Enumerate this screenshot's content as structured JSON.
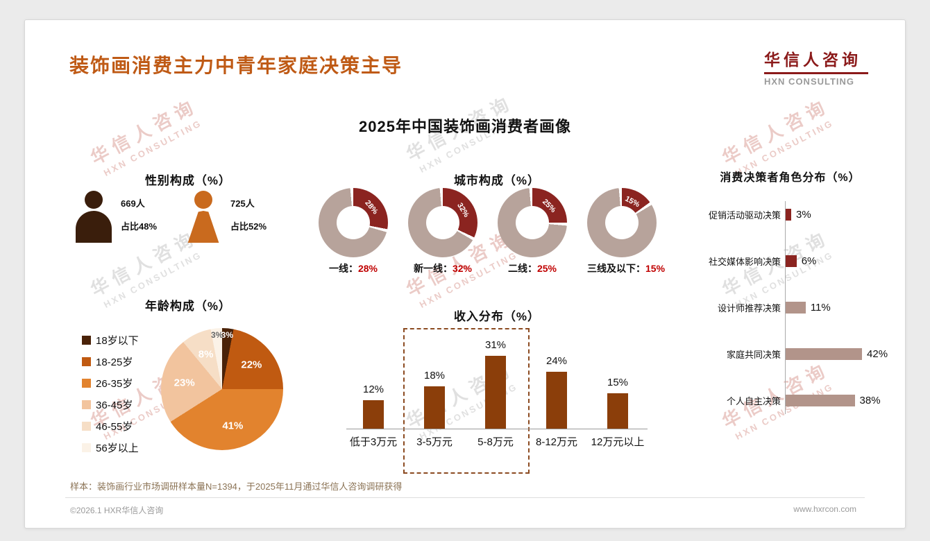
{
  "header": {
    "title": "装饰画消费主力中青年家庭决策主导",
    "logo_cn": "华信人咨询",
    "logo_en": "HXN CONSULTING"
  },
  "main_title": "2025年中国装饰画消费者画像",
  "watermark": {
    "cn": "华信人咨询",
    "en": "HXN CONSULTING"
  },
  "footer": {
    "note": "样本：装饰画行业市场调研样本量N=1394，于2025年11月通过华信人咨询调研获得",
    "copyright": "©2026.1 HXR华信人咨询",
    "website": "www.hxrcon.com"
  },
  "chart_data": [
    {
      "id": "gender",
      "type": "table",
      "title": "性别构成（%）",
      "items": [
        {
          "gender": "male",
          "count": "669人",
          "share": "占比48%",
          "color": "#3a1e0c"
        },
        {
          "gender": "female",
          "count": "725人",
          "share": "占比52%",
          "color": "#c96a1e"
        }
      ]
    },
    {
      "id": "city",
      "type": "pie",
      "variant": "donut",
      "title": "城市构成（%）",
      "categories": [
        "一线",
        "新一线",
        "二线",
        "三线及以下"
      ],
      "values": [
        28,
        32,
        25,
        15
      ],
      "slice_color": "#8b2420",
      "rest_color": "#b7a39b"
    },
    {
      "id": "decision",
      "type": "bar",
      "orientation": "horizontal",
      "title": "消费决策者角色分布（%）",
      "categories": [
        "促销活动驱动决策",
        "社交媒体影响决策",
        "设计师推荐决策",
        "家庭共同决策",
        "个人自主决策"
      ],
      "values": [
        3,
        6,
        11,
        42,
        38
      ],
      "bar_colors": [
        "#8b2420",
        "#8b2420",
        "#b2948a",
        "#b2948a",
        "#b2948a"
      ]
    },
    {
      "id": "age",
      "type": "pie",
      "title": "年龄构成（%）",
      "categories": [
        "18岁以下",
        "18-25岁",
        "26-35岁",
        "36-45岁",
        "46-55岁",
        "56岁以上"
      ],
      "values": [
        3,
        22,
        41,
        23,
        8,
        3
      ],
      "colors": [
        "#4a2208",
        "#c05a11",
        "#e2832e",
        "#f2c49e",
        "#f6dec6",
        "#fbf2e7"
      ],
      "label_colors": [
        "#ffffff",
        "#ffffff",
        "#ffffff",
        "#ffffff",
        "#ffffff",
        "#666666"
      ]
    },
    {
      "id": "income",
      "type": "bar",
      "title": "收入分布（%）",
      "categories": [
        "低于3万元",
        "3-5万元",
        "5-8万元",
        "8-12万元",
        "12万元以上"
      ],
      "values": [
        12,
        18,
        31,
        24,
        15
      ],
      "bar_color": "#8b3e0a",
      "highlight_range": [
        "3-5万元",
        "5-8万元"
      ]
    }
  ]
}
